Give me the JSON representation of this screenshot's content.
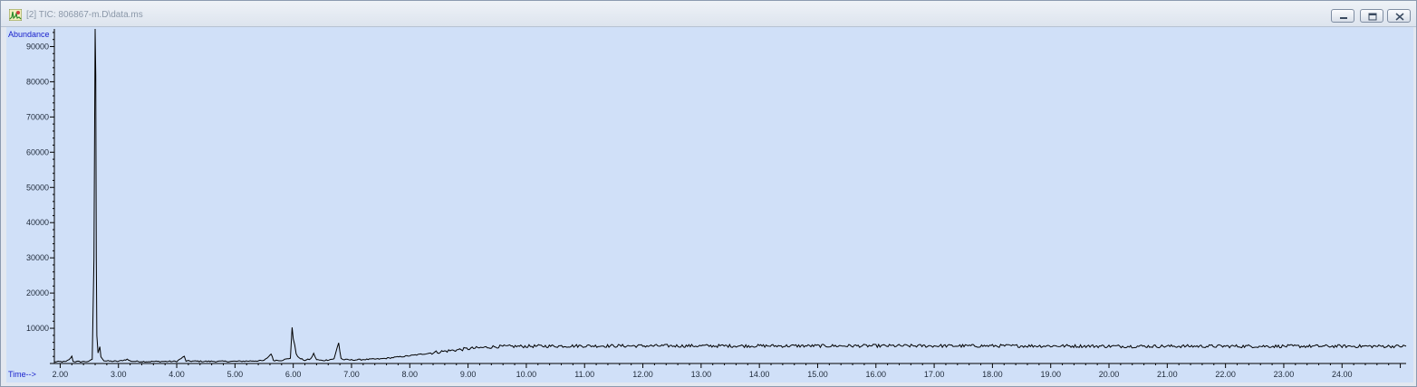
{
  "window": {
    "title": "[2] TIC: 806867-m.D\\data.ms",
    "app_icon": "chromatogram-app-icon",
    "controls": [
      "minimize-icon",
      "restore-icon",
      "close-icon"
    ]
  },
  "colors": {
    "plot_background": "#d0e0f8",
    "trace": "#000000",
    "axis_title": "#1a22cc"
  },
  "chart_data": {
    "type": "line",
    "title": "",
    "xlabel": "Time-->",
    "ylabel": "Abundance",
    "xlim": [
      1.9,
      25.1
    ],
    "ylim": [
      0,
      95000
    ],
    "x_ticks": [
      "2.00",
      "3.00",
      "4.00",
      "5.00",
      "6.00",
      "7.00",
      "8.00",
      "9.00",
      "10.00",
      "11.00",
      "12.00",
      "13.00",
      "14.00",
      "15.00",
      "16.00",
      "17.00",
      "18.00",
      "19.00",
      "20.00",
      "21.00",
      "22.00",
      "23.00",
      "24.00"
    ],
    "y_ticks": [
      "10000",
      "20000",
      "30000",
      "40000",
      "50000",
      "60000",
      "70000",
      "80000",
      "90000"
    ],
    "grid": false,
    "legend": "none",
    "series": [
      {
        "x": [
          1.9,
          2.1,
          2.18,
          2.2,
          2.22,
          2.35,
          2.5,
          2.55,
          2.58,
          2.6,
          2.61,
          2.62,
          2.63,
          2.65,
          2.68,
          2.7,
          2.75,
          2.8,
          3.0,
          3.15,
          3.2,
          3.25,
          3.5,
          4.0,
          4.1,
          4.13,
          4.16,
          4.5,
          5.0,
          5.5,
          5.58,
          5.62,
          5.66,
          5.8,
          5.95,
          5.98,
          6.0,
          6.05,
          6.1,
          6.2,
          6.3,
          6.35,
          6.4,
          6.5,
          6.7,
          6.78,
          6.8,
          6.82,
          6.85,
          7.0,
          7.5,
          8.0,
          8.5,
          9.0,
          9.5,
          10.0,
          11.0,
          12.0,
          13.0,
          14.0,
          15.0,
          16.0,
          17.0,
          18.0,
          19.0,
          20.0,
          21.0,
          22.0,
          23.0,
          24.0,
          25.1
        ],
        "y": [
          500,
          500,
          1500,
          2200,
          600,
          500,
          600,
          1200,
          30000,
          95000,
          82000,
          30000,
          8000,
          3000,
          4500,
          2000,
          800,
          700,
          600,
          1200,
          700,
          600,
          550,
          600,
          1700,
          2000,
          700,
          600,
          600,
          800,
          2000,
          2800,
          900,
          900,
          1500,
          10500,
          7000,
          2800,
          1500,
          900,
          1300,
          2800,
          1100,
          800,
          1300,
          6000,
          3500,
          1500,
          1100,
          1000,
          1300,
          2200,
          3300,
          4200,
          4800,
          4900,
          5000,
          5000,
          5000,
          5000,
          5000,
          5000,
          5000,
          5000,
          5000,
          4900,
          4900,
          4900,
          4900,
          4900,
          4900
        ]
      }
    ]
  }
}
